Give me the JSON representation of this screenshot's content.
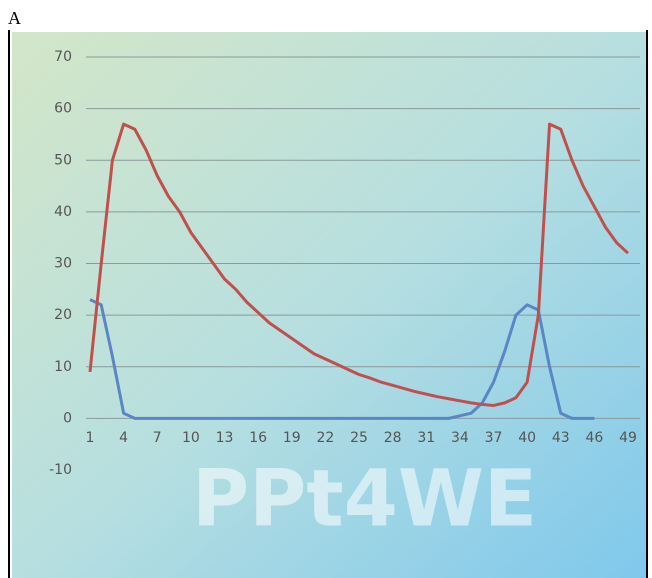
{
  "label": "А",
  "chart_data": {
    "type": "line",
    "watermark": "PPt4WE",
    "x": [
      1,
      2,
      3,
      4,
      5,
      6,
      7,
      8,
      9,
      10,
      11,
      12,
      13,
      14,
      15,
      16,
      17,
      18,
      19,
      20,
      21,
      22,
      23,
      24,
      25,
      26,
      27,
      28,
      29,
      30,
      31,
      32,
      33,
      34,
      35,
      36,
      37,
      38,
      39,
      40,
      41,
      42,
      43,
      44,
      45,
      46,
      47,
      48,
      49
    ],
    "series": [
      {
        "name": "series-blue",
        "color": "#5b86c4",
        "values": [
          23,
          22,
          12,
          1,
          0,
          0,
          0,
          0,
          0,
          0,
          0,
          0,
          0,
          0,
          0,
          0,
          0,
          0,
          0,
          0,
          0,
          0,
          0,
          0,
          0,
          0,
          0,
          0,
          0,
          0,
          0,
          0,
          0,
          0.5,
          1,
          3,
          7,
          13,
          20,
          22,
          21,
          10,
          1,
          0,
          0,
          0,
          null,
          null,
          null
        ]
      },
      {
        "name": "series-red",
        "color": "#c0504d",
        "values": [
          9,
          30,
          50,
          57,
          56,
          52,
          47,
          43,
          40,
          36,
          33,
          30,
          27,
          25,
          22.5,
          20.5,
          18.5,
          17,
          15.5,
          14,
          12.5,
          11.5,
          10.5,
          9.5,
          8.5,
          7.8,
          7,
          6.4,
          5.8,
          5.2,
          4.7,
          4.2,
          3.8,
          3.4,
          3,
          2.7,
          2.5,
          3,
          4,
          7,
          20,
          57,
          56,
          50,
          45,
          41,
          37,
          34,
          32
        ]
      }
    ],
    "ylim": [
      -10,
      70
    ],
    "yticks": [
      -10,
      0,
      10,
      20,
      30,
      40,
      50,
      60,
      70
    ],
    "xlim": [
      1,
      49
    ],
    "xticks": [
      1,
      4,
      7,
      10,
      13,
      16,
      19,
      22,
      25,
      28,
      31,
      34,
      37,
      40,
      43,
      46,
      49
    ],
    "grid": true
  }
}
